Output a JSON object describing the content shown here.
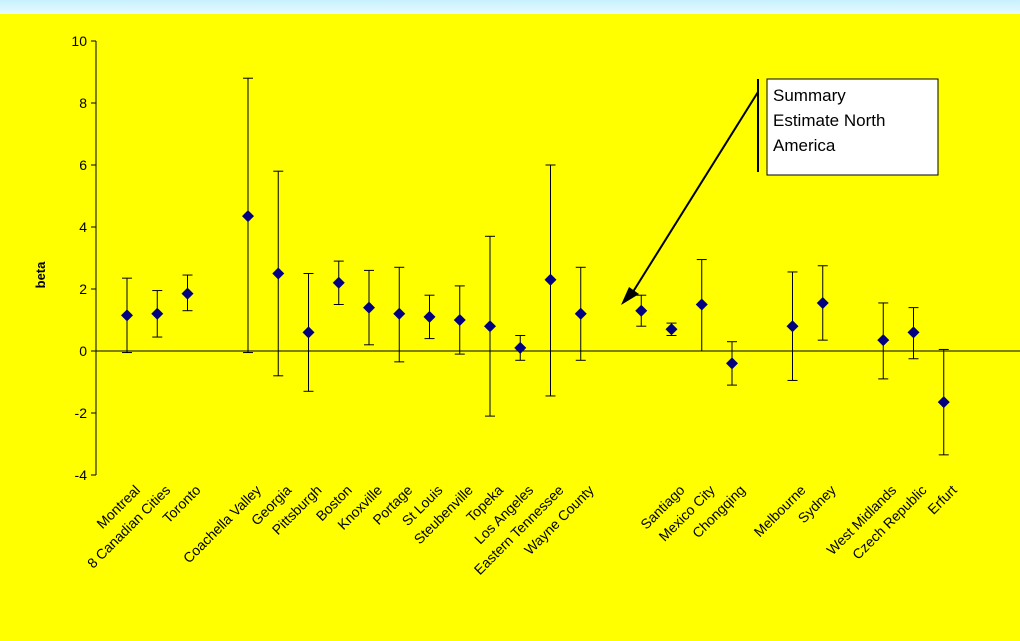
{
  "chart_data": {
    "type": "scatter",
    "title": "",
    "xlabel": "",
    "ylabel": "beta",
    "ylim": [
      -4,
      10
    ],
    "yticks": [
      "10",
      "8",
      "6",
      "4",
      "2",
      "0",
      "-2",
      "-4"
    ],
    "grid": false,
    "points": [
      {
        "label": "Montreal",
        "y": 1.15,
        "lo": -0.05,
        "hi": 2.35
      },
      {
        "label": "8 Canadian Cities",
        "y": 1.2,
        "lo": 0.45,
        "hi": 1.95
      },
      {
        "label": "Toronto",
        "y": 1.85,
        "lo": 1.3,
        "hi": 2.45
      },
      {
        "label": "Coachella Valley",
        "y": 4.35,
        "lo": -0.05,
        "hi": 8.8
      },
      {
        "label": "Georgia",
        "y": 2.5,
        "lo": -0.8,
        "hi": 5.8
      },
      {
        "label": "Pittsburgh",
        "y": 0.6,
        "lo": -1.3,
        "hi": 2.5
      },
      {
        "label": "Boston",
        "y": 2.2,
        "lo": 1.5,
        "hi": 2.9
      },
      {
        "label": "Knoxville",
        "y": 1.4,
        "lo": 0.2,
        "hi": 2.6
      },
      {
        "label": "Portage",
        "y": 1.2,
        "lo": -0.35,
        "hi": 2.7
      },
      {
        "label": "St Louis",
        "y": 1.1,
        "lo": 0.4,
        "hi": 1.8
      },
      {
        "label": "Steubenville",
        "y": 1.0,
        "lo": -0.1,
        "hi": 2.1
      },
      {
        "label": "Topeka",
        "y": 0.8,
        "lo": -2.1,
        "hi": 3.7
      },
      {
        "label": "Los Angeles",
        "y": 0.1,
        "lo": -0.3,
        "hi": 0.5
      },
      {
        "label": "Eastern Tennessee",
        "y": 2.3,
        "lo": -1.45,
        "hi": 6.0
      },
      {
        "label": "Wayne County",
        "y": 1.2,
        "lo": -0.3,
        "hi": 2.7
      },
      {
        "label": "Summary Estimate North America",
        "y": 1.3,
        "lo": 0.8,
        "hi": 1.8
      },
      {
        "label": "Santiago",
        "y": 0.7,
        "lo": 0.5,
        "hi": 0.9
      },
      {
        "label": "Mexico City",
        "y": 1.5,
        "lo": 0.0,
        "hi": 2.95
      },
      {
        "label": "Chongqing",
        "y": -0.4,
        "lo": -1.1,
        "hi": 0.3
      },
      {
        "label": "Melbourne",
        "y": 0.8,
        "lo": -0.95,
        "hi": 2.55
      },
      {
        "label": "Sydney",
        "y": 1.55,
        "lo": 0.35,
        "hi": 2.75
      },
      {
        "label": "West Midlands",
        "y": 0.35,
        "lo": -0.9,
        "hi": 1.55
      },
      {
        "label": "Czech Republic",
        "y": 0.6,
        "lo": -0.25,
        "hi": 1.4
      },
      {
        "label": "Erfurt",
        "y": -1.65,
        "lo": -3.35,
        "hi": 0.05
      }
    ],
    "x_labels": [
      "Montreal",
      "8 Canadian Cities",
      "Toronto",
      "Coachella Valley",
      "Georgia",
      "Pittsburgh",
      "Boston",
      "Knoxville",
      "Portage",
      "St Louis",
      "Steubenville",
      "Topeka",
      "Los Angeles",
      "Eastern Tennessee",
      "Wayne County",
      "Santiago",
      "Mexico City",
      "Chongqing",
      "Melbourne",
      "Sydney",
      "West Midlands",
      "Czech Republic",
      "Erfurt"
    ],
    "annotation": {
      "lines": [
        "Summary",
        "Estimate North",
        "America"
      ],
      "target": "Summary Estimate North America"
    },
    "colors": {
      "background": "#ffff00",
      "marker": "#000080",
      "line": "#000000"
    }
  }
}
